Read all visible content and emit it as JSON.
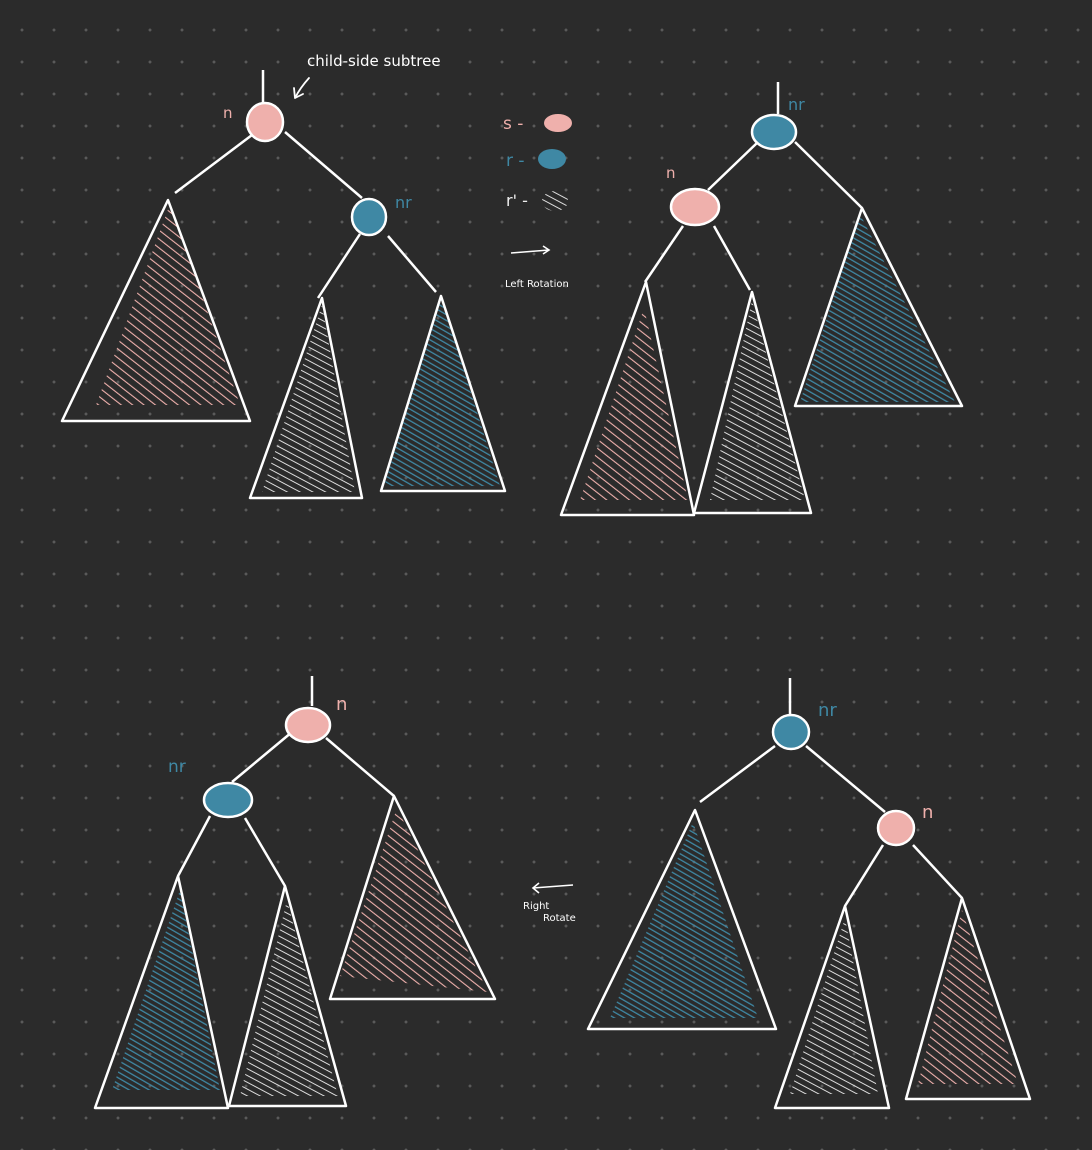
{
  "colors": {
    "background": "#2b2b2b",
    "line": "#ffffff",
    "s": "#efb0ac",
    "r": "#3f88a4",
    "r_prime": "#f0f0f0"
  },
  "labels": {
    "n": "n",
    "nr": "nr",
    "annotation": "child-side subtree",
    "legend_s": "s -",
    "legend_r": "r -",
    "legend_rp": "r' -",
    "left_rotation": "Left Rotation",
    "right_rotate_1": "Right",
    "right_rotate_2": "Rotate"
  }
}
